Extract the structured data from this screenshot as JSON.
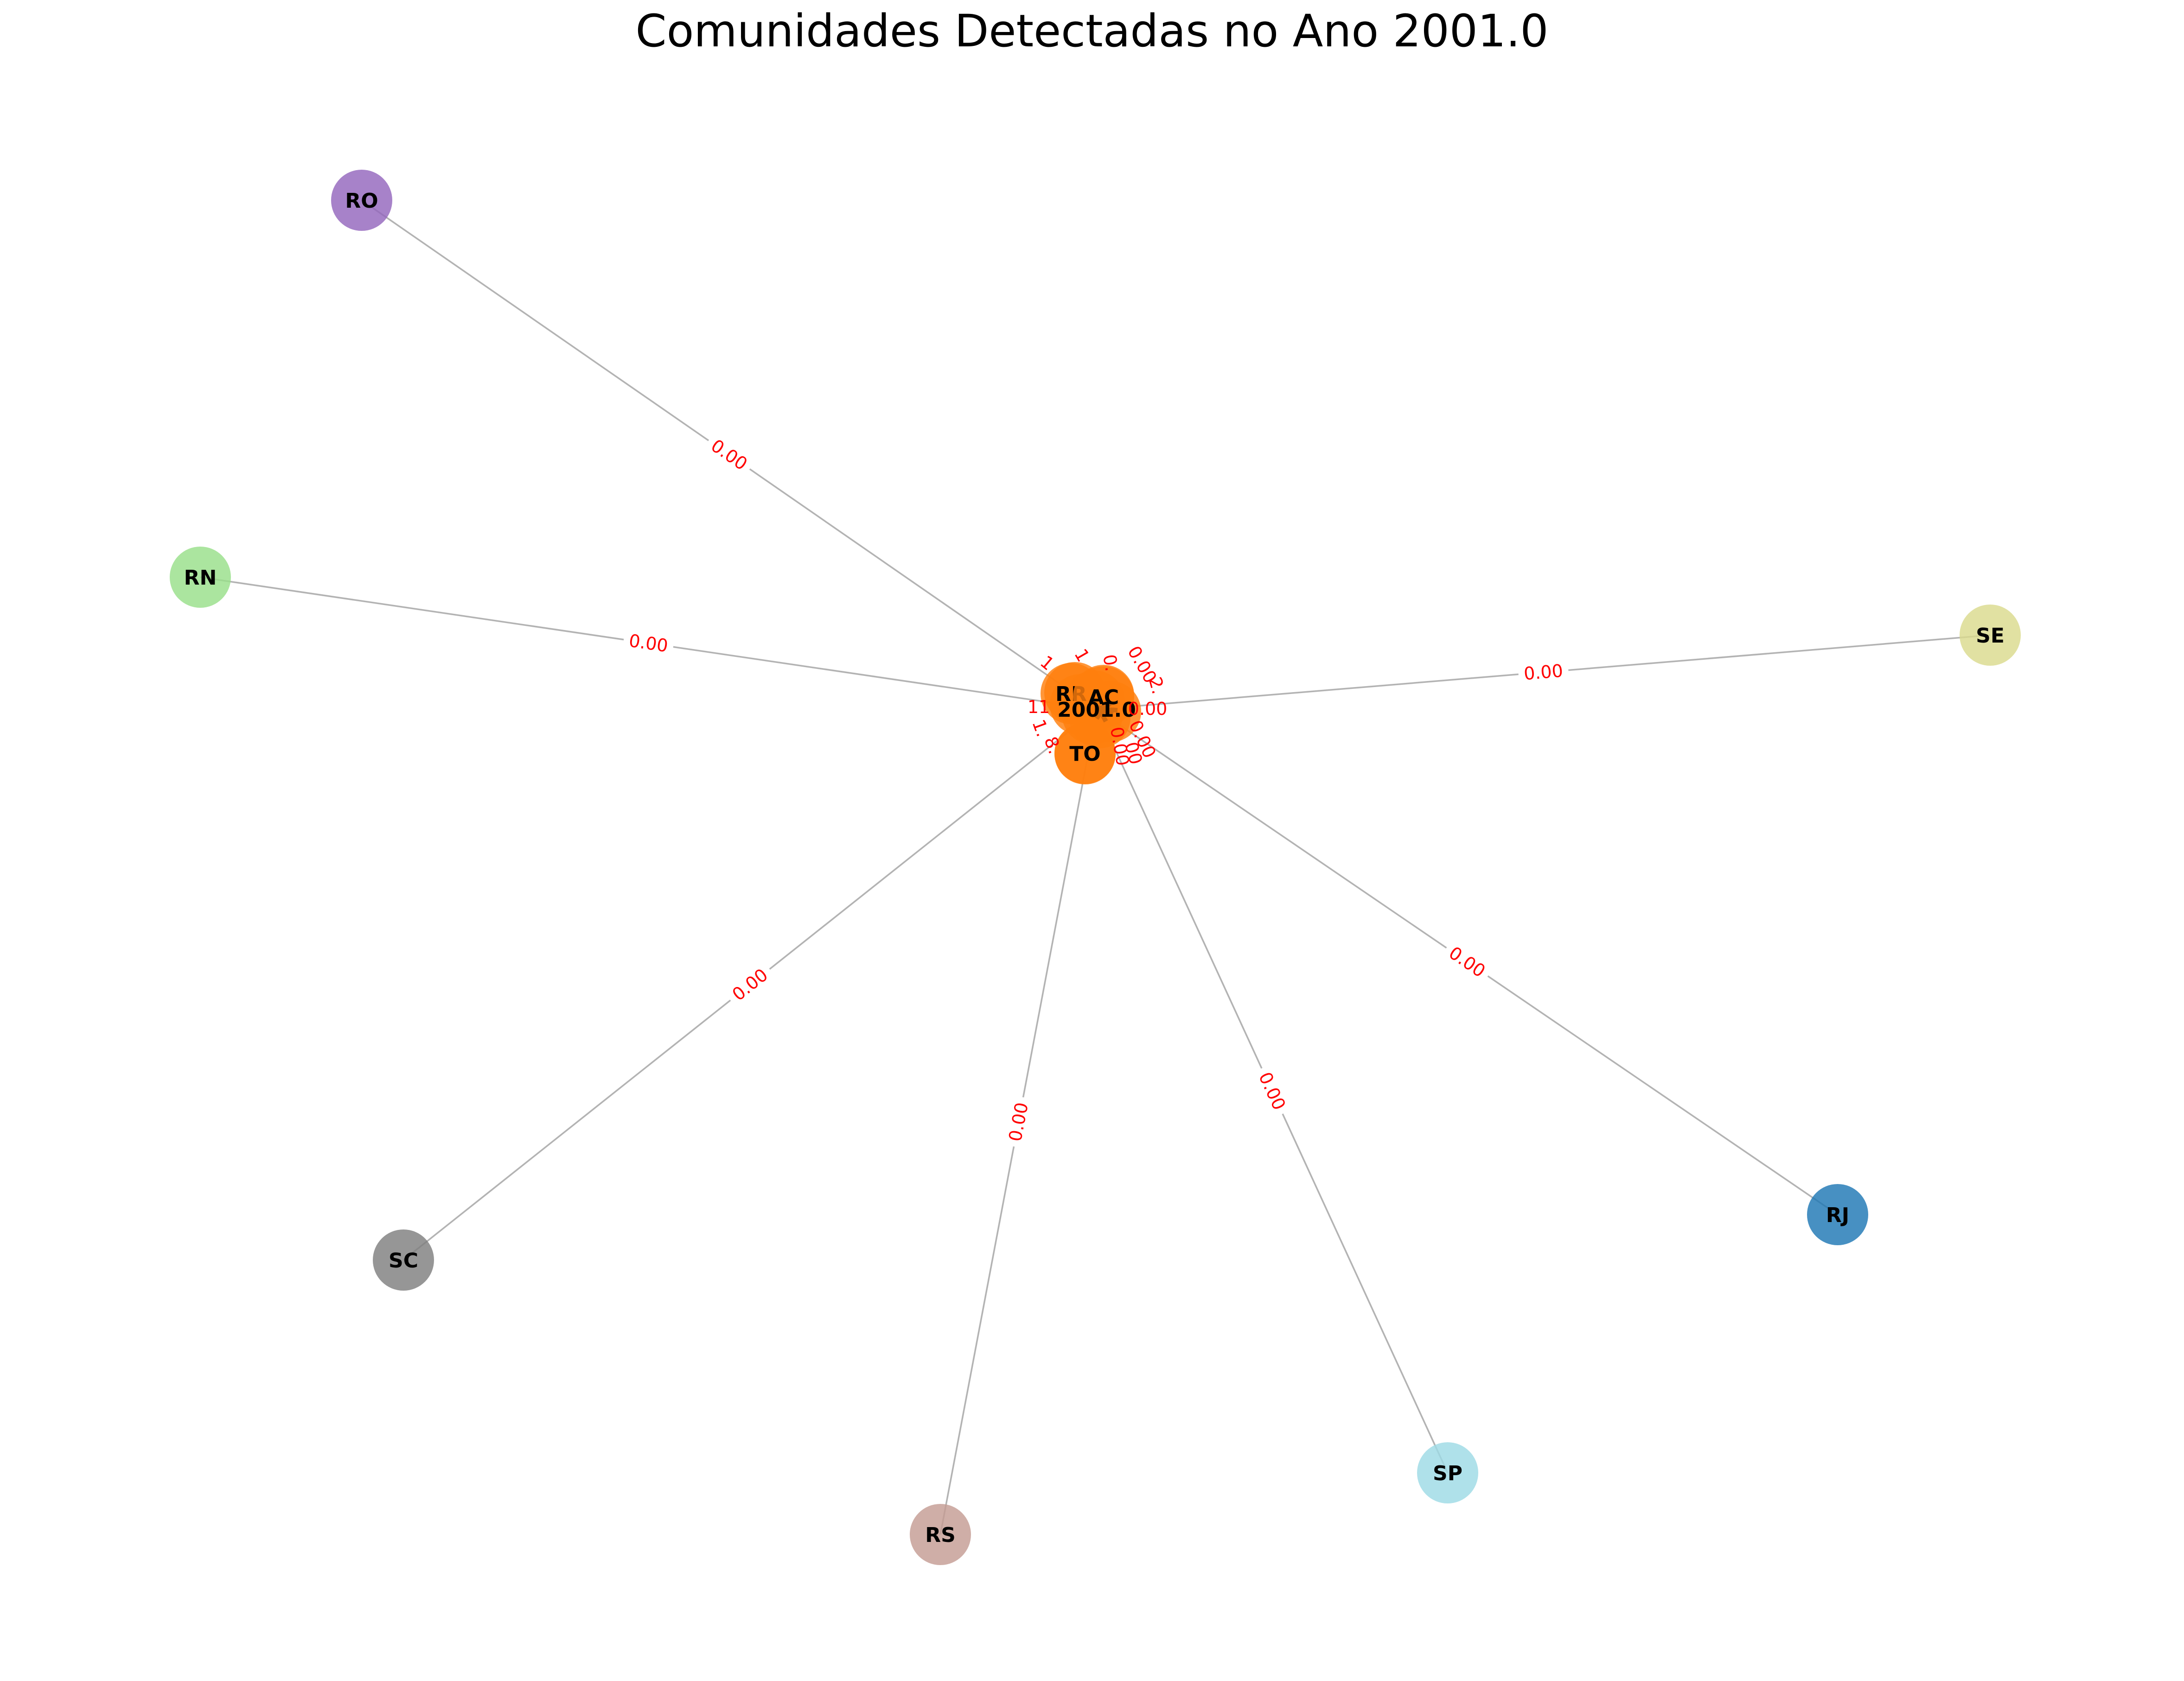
{
  "title": "Comunidades Detectadas no Ano 2001.0",
  "colors": {
    "edge": "#b3b3b3",
    "edge_label": "#ff0000",
    "node_label": "#000000",
    "hub_community": "#ff7f0e"
  },
  "hub_label": "2001.0",
  "nodes": [
    {
      "id": "RO",
      "label": "RO",
      "color": "#9467bd"
    },
    {
      "id": "RN",
      "label": "RN",
      "color": "#98df8a"
    },
    {
      "id": "SE",
      "label": "SE",
      "color": "#dbdb8d"
    },
    {
      "id": "SC",
      "label": "SC",
      "color": "#7f7f7f"
    },
    {
      "id": "RS",
      "label": "RS",
      "color": "#c49c94"
    },
    {
      "id": "SP",
      "label": "SP",
      "color": "#9edae5"
    },
    {
      "id": "RJ",
      "label": "RJ",
      "color": "#1f77b4"
    },
    {
      "id": "RR",
      "label": "RR",
      "color": "#ff7f0e"
    },
    {
      "id": "AC",
      "label": "AC",
      "color": "#ff7f0e"
    },
    {
      "id": "TO",
      "label": "TO",
      "color": "#ff7f0e"
    }
  ],
  "edges": [
    {
      "source": "2001.0",
      "target": "RO",
      "weight": "0.00"
    },
    {
      "source": "2001.0",
      "target": "RN",
      "weight": "0.00"
    },
    {
      "source": "2001.0",
      "target": "SE",
      "weight": "0.00"
    },
    {
      "source": "2001.0",
      "target": "SC",
      "weight": "0.00"
    },
    {
      "source": "2001.0",
      "target": "RS",
      "weight": "0.00"
    },
    {
      "source": "2001.0",
      "target": "SP",
      "weight": "0.00"
    },
    {
      "source": "2001.0",
      "target": "RJ",
      "weight": "0.00"
    }
  ],
  "cluster_labels": [
    "1",
    "1",
    "11",
    "1.",
    "0.",
    "0.00",
    "0.00",
    "0.00",
    "0.00",
    "2.",
    "8.",
    "00"
  ]
}
